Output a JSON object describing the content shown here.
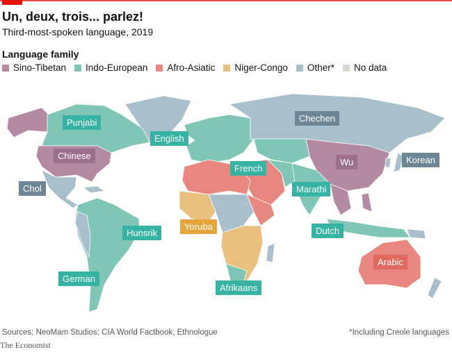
{
  "header": {
    "title": "Un, deux, trois... parlez!",
    "subtitle": "Third-most-spoken language, 2019"
  },
  "legend": {
    "title": "Language family",
    "items": [
      {
        "label": "Sino-Tibetan",
        "color": "#b48aa3"
      },
      {
        "label": "Indo-European",
        "color": "#80c6b6"
      },
      {
        "label": "Afro-Asiatic",
        "color": "#e8877f"
      },
      {
        "label": "Niger-Congo",
        "color": "#e9c07e"
      },
      {
        "label": "Other*",
        "color": "#a9bfcc"
      },
      {
        "label": "No data",
        "color": "#dad7cd"
      }
    ]
  },
  "labels": [
    {
      "text": "Punjabi",
      "family": "Indo-European",
      "color": "#36b3a2"
    },
    {
      "text": "Chinese",
      "family": "Sino-Tibetan",
      "color": "#9c6f8d"
    },
    {
      "text": "Chol",
      "family": "Other*",
      "color": "#6e8796"
    },
    {
      "text": "English",
      "family": "Indo-European",
      "color": "#36b3a2"
    },
    {
      "text": "French",
      "family": "Indo-European",
      "color": "#36b3a2"
    },
    {
      "text": "Chechen",
      "family": "Other*",
      "color": "#6e8796"
    },
    {
      "text": "Wu",
      "family": "Sino-Tibetan",
      "color": "#9c6f8d"
    },
    {
      "text": "Korean",
      "family": "Other*",
      "color": "#6e8796"
    },
    {
      "text": "Marathi",
      "family": "Indo-European",
      "color": "#36b3a2"
    },
    {
      "text": "Yoruba",
      "family": "Niger-Congo",
      "color": "#e4a53a"
    },
    {
      "text": "Hunsrik",
      "family": "Indo-European",
      "color": "#36b3a2"
    },
    {
      "text": "Dutch",
      "family": "Indo-European",
      "color": "#36b3a2"
    },
    {
      "text": "Arabic",
      "family": "Afro-Asiatic",
      "color": "#e06a60"
    },
    {
      "text": "German",
      "family": "Indo-European",
      "color": "#36b3a2"
    },
    {
      "text": "Afrikaans",
      "family": "Indo-European",
      "color": "#36b3a2"
    }
  ],
  "footer": {
    "sources": "Sources: NeoMam Studios; CIA World Factbook; Ethnologue",
    "note": "*Including Creole languages",
    "brand": "The Economist"
  }
}
